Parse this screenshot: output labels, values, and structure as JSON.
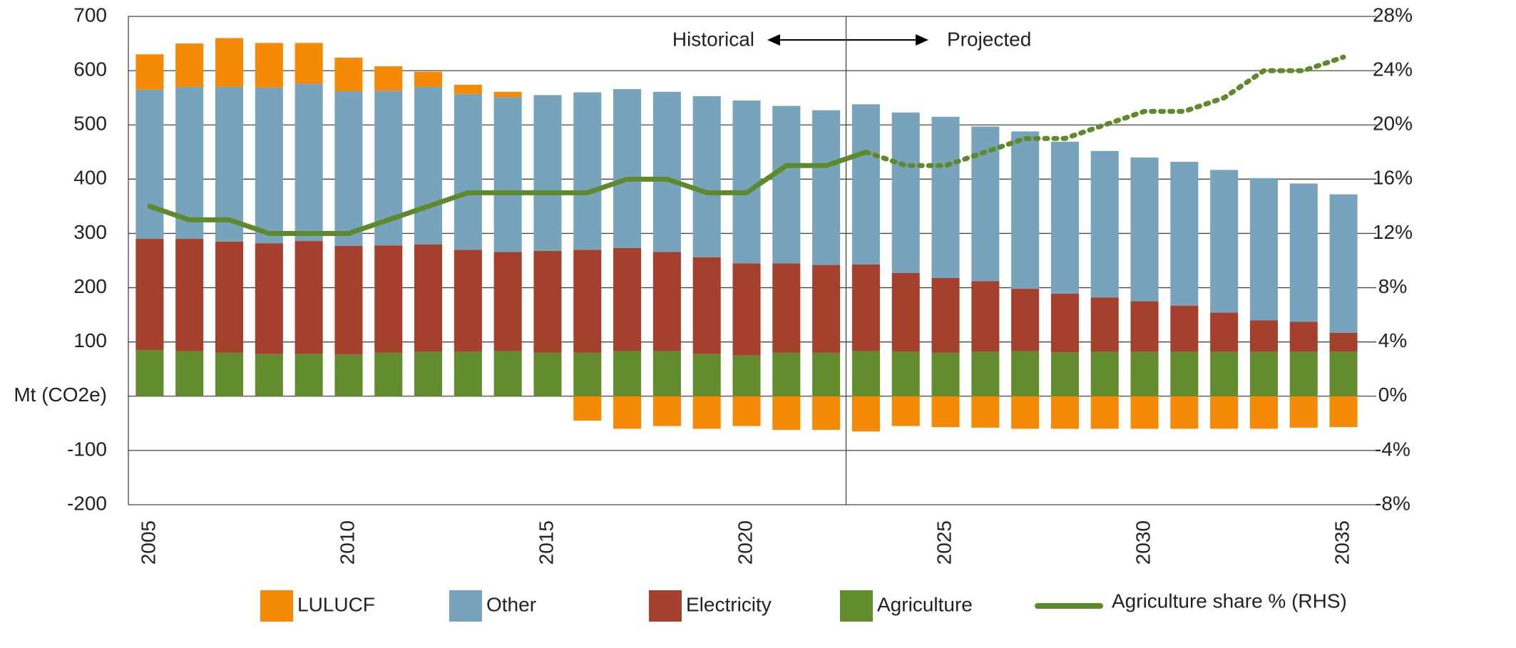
{
  "chart_data": {
    "type": "stacked_bar_line",
    "annotations": {
      "left": "Historical",
      "right": "Projected"
    },
    "divider": 2022.5,
    "x": [
      2005,
      2006,
      2007,
      2008,
      2009,
      2010,
      2011,
      2012,
      2013,
      2014,
      2015,
      2016,
      2017,
      2018,
      2019,
      2020,
      2021,
      2022,
      2023,
      2024,
      2025,
      2026,
      2027,
      2028,
      2029,
      2030,
      2031,
      2032,
      2033,
      2034,
      2035
    ],
    "xlim": [
      2004.5,
      2035.5
    ],
    "xticks": [
      2005,
      2010,
      2015,
      2020,
      2025,
      2030,
      2035
    ],
    "ylim": [
      -200,
      700
    ],
    "yticks": [
      -200,
      -100,
      {
        "value": 0,
        "label": "Mt (CO2e)"
      },
      100,
      200,
      300,
      400,
      500,
      600,
      700
    ],
    "y2lim": [
      -8,
      28
    ],
    "y2ticks": [
      {
        "value": -8,
        "label": "-8%"
      },
      {
        "value": -4,
        "label": "-4%"
      },
      {
        "value": 0,
        "label": "0%"
      },
      {
        "value": 4,
        "label": "4%"
      },
      {
        "value": 8,
        "label": "8%"
      },
      {
        "value": 12,
        "label": "12%"
      },
      {
        "value": 16,
        "label": "16%"
      },
      {
        "value": 20,
        "label": "20%"
      },
      {
        "value": 24,
        "label": "24%"
      },
      {
        "value": 28,
        "label": "28%"
      }
    ],
    "grid": true,
    "series": [
      {
        "name": "LULUCF",
        "color": "#f58a07",
        "values": [
          65,
          80,
          90,
          82,
          75,
          62,
          45,
          28,
          17,
          10,
          0,
          -45,
          -60,
          -55,
          -60,
          -55,
          -62,
          -62,
          -65,
          -55,
          -57,
          -58,
          -60,
          -60,
          -60,
          -60,
          -60,
          -60,
          -60,
          -58,
          -57
        ]
      },
      {
        "name": "Other",
        "color": "#77a4bc",
        "values": [
          275,
          280,
          285,
          287,
          290,
          285,
          285,
          290,
          287,
          285,
          287,
          290,
          293,
          295,
          297,
          300,
          290,
          285,
          295,
          296,
          297,
          285,
          290,
          280,
          270,
          265,
          265,
          263,
          262,
          255,
          255
        ]
      },
      {
        "name": "Electricity",
        "color": "#a5402e",
        "values": [
          205,
          207,
          205,
          204,
          208,
          200,
          198,
          198,
          188,
          183,
          188,
          190,
          190,
          183,
          178,
          170,
          165,
          162,
          160,
          145,
          138,
          130,
          115,
          108,
          100,
          93,
          85,
          72,
          58,
          55,
          35
        ]
      },
      {
        "name": "Agriculture",
        "color": "#638c2e",
        "values": [
          85,
          83,
          80,
          78,
          78,
          77,
          80,
          82,
          82,
          83,
          80,
          80,
          83,
          83,
          78,
          75,
          80,
          80,
          83,
          82,
          80,
          82,
          83,
          81,
          82,
          82,
          82,
          82,
          82,
          82,
          82
        ]
      },
      {
        "name": "Agriculture share % (RHS)",
        "color": "#5f8a2b",
        "axis": "y2",
        "type": "line",
        "dotted_from": 2023,
        "values": [
          14,
          13,
          13,
          12,
          12,
          12,
          13,
          14,
          15,
          15,
          15,
          15,
          16,
          16,
          15,
          15,
          17,
          17,
          18,
          17,
          17,
          18,
          19,
          19,
          20,
          21,
          21,
          22,
          24,
          24,
          25
        ]
      }
    ]
  }
}
